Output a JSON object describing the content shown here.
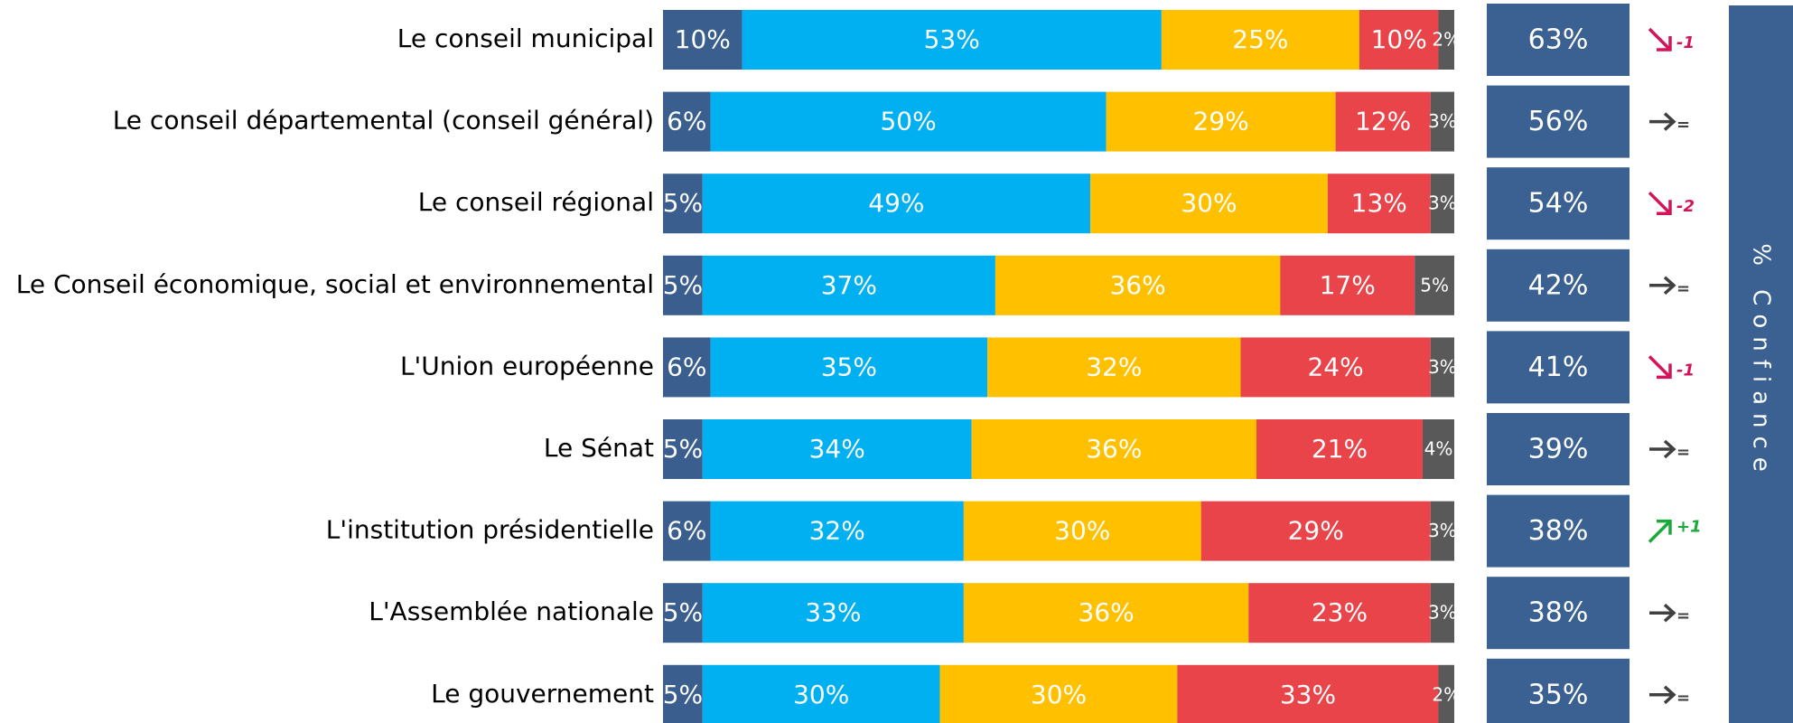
{
  "chart_data": {
    "type": "stacked_barh",
    "categories": [
      "Le conseil municipal",
      "Le conseil départemental (conseil général)",
      "Le conseil régional",
      "Le Conseil économique, social et environnemental",
      "L'Union européenne",
      "Le Sénat",
      "L'institution présidentielle",
      "L'Assemblée nationale",
      "Le gouvernement"
    ],
    "xlim": [
      0,
      100
    ],
    "series": [
      {
        "color": "#3a5f8f",
        "values": [
          10,
          6,
          5,
          5,
          6,
          5,
          6,
          5,
          5
        ],
        "value_labels": [
          "10%",
          "6%",
          "5%",
          "5%",
          "6%",
          "5%",
          "6%",
          "5%",
          "5%"
        ]
      },
      {
        "color": "#00b0f0",
        "values": [
          53,
          50,
          49,
          37,
          35,
          34,
          32,
          33,
          30
        ],
        "value_labels": [
          "53%",
          "50%",
          "49%",
          "37%",
          "35%",
          "34%",
          "32%",
          "33%",
          "30%"
        ]
      },
      {
        "color": "#ffc000",
        "values": [
          25,
          29,
          30,
          36,
          32,
          36,
          30,
          36,
          30
        ],
        "value_labels": [
          "25%",
          "29%",
          "30%",
          "36%",
          "32%",
          "36%",
          "30%",
          "36%",
          "30%"
        ]
      },
      {
        "color": "#e84449",
        "values": [
          10,
          12,
          13,
          17,
          24,
          21,
          29,
          23,
          33
        ],
        "value_labels": [
          "10%",
          "12%",
          "13%",
          "17%",
          "24%",
          "21%",
          "29%",
          "23%",
          "33%"
        ]
      },
      {
        "color": "#595959",
        "values": [
          2,
          3,
          3,
          5,
          3,
          4,
          3,
          3,
          2
        ],
        "value_labels": [
          "2%",
          "3%",
          "3%",
          "5%",
          "3%",
          "4%",
          "3%",
          "3%",
          "2%"
        ]
      }
    ],
    "confidence": {
      "color": "#3b6193",
      "values": [
        63,
        56,
        54,
        42,
        41,
        39,
        38,
        38,
        35
      ],
      "value_labels": [
        "63%",
        "56%",
        "54%",
        "42%",
        "41%",
        "39%",
        "38%",
        "38%",
        "35%"
      ]
    },
    "trends": [
      "-1",
      "=",
      "-2",
      "=",
      "-1",
      "=",
      "+1",
      "=",
      "="
    ],
    "side_label": "% Confiance"
  }
}
